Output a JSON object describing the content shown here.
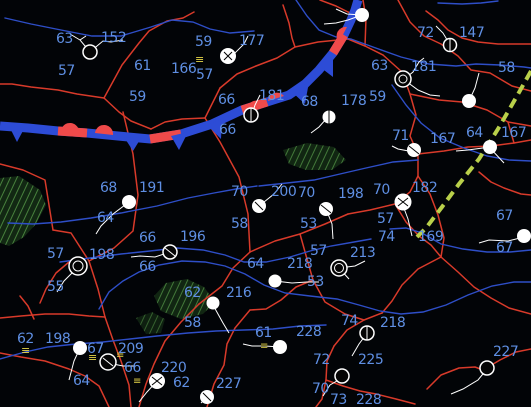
{
  "map": {
    "colors": {
      "background": "#020407",
      "state_lines": "#d83a2a",
      "isobars": "#2e4ec7",
      "cold_front": "#2d4cd6",
      "warm_front": "#ef4a4a",
      "trough": "#b9d04a",
      "labels": "#5f8fe3",
      "station": "#ffffff"
    },
    "stations": [
      {
        "temp": "63",
        "dew": "57",
        "pressure": "152"
      },
      {
        "temp": "61",
        "dew": "59",
        "pressure": "166"
      },
      {
        "temp": "59",
        "dew": "57",
        "pressure": "177"
      },
      {
        "temp": "66",
        "dew": "66",
        "pressure": "181"
      },
      {
        "temp": "68",
        "dew": "",
        "pressure": "178"
      },
      {
        "temp": "63",
        "dew": "59",
        "pressure": "181"
      },
      {
        "temp": "72",
        "dew": "",
        "pressure": "147"
      },
      {
        "temp": "58",
        "dew": "",
        "pressure": ""
      },
      {
        "temp": "71",
        "dew": "",
        "pressure": "167"
      },
      {
        "temp": "64",
        "dew": "",
        "pressure": "167"
      },
      {
        "temp": "68",
        "dew": "64",
        "pressure": "191"
      },
      {
        "temp": "70",
        "dew": "58",
        "pressure": "200"
      },
      {
        "temp": "70",
        "dew": "53",
        "pressure": "198"
      },
      {
        "temp": "70",
        "dew": "57",
        "pressure": "182"
      },
      {
        "temp": "74",
        "dew": "",
        "pressure": "169"
      },
      {
        "temp": "57",
        "dew": "55",
        "pressure": "198"
      },
      {
        "temp": "66",
        "dew": "66",
        "pressure": "196"
      },
      {
        "temp": "64",
        "dew": "",
        "pressure": "218"
      },
      {
        "temp": "57",
        "dew": "53",
        "pressure": "213"
      },
      {
        "temp": "62",
        "dew": "58",
        "pressure": "216"
      },
      {
        "temp": "61",
        "dew": "",
        "pressure": "228"
      },
      {
        "temp": "74",
        "dew": "72",
        "pressure": "218"
      },
      {
        "temp": "62",
        "dew": "64",
        "pressure": "198"
      },
      {
        "temp": "67",
        "dew": "",
        "pressure": "209"
      },
      {
        "temp": "66",
        "dew": "",
        "pressure": "220"
      },
      {
        "temp": "62",
        "dew": "",
        "pressure": "227"
      },
      {
        "temp": "70",
        "dew": "73",
        "pressure": "228"
      },
      {
        "temp": "",
        "dew": "",
        "pressure": "225"
      },
      {
        "temp": "",
        "dew": "",
        "pressure": "227"
      },
      {
        "temp": "67",
        "dew": "67",
        "pressure": ""
      }
    ]
  }
}
